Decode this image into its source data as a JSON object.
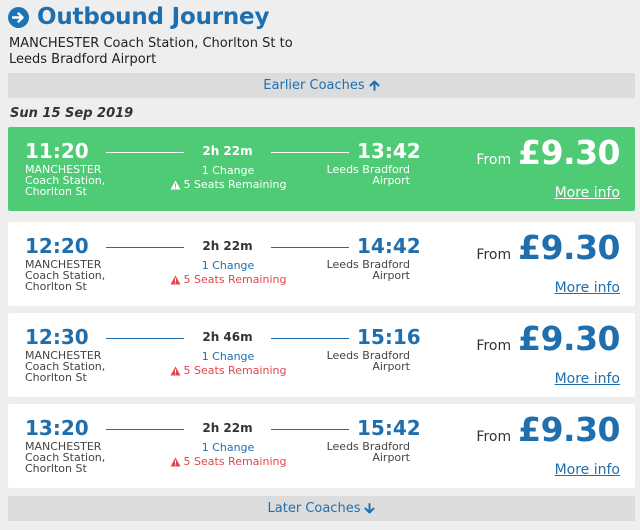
{
  "header": {
    "title": "Outbound Journey",
    "icon": "arrow-right-circle-icon"
  },
  "route": {
    "line1": "MANCHESTER Coach Station, Chorlton St to",
    "line2": "Leeds Bradford Airport"
  },
  "nav": {
    "earlier_label": "Earlier Coaches",
    "later_label": "Later Coaches"
  },
  "date": "Sun 15 Sep 2019",
  "colors": {
    "accent": "#1f6fae",
    "selected": "#4fca75",
    "warning": "#e0464d"
  },
  "journeys": [
    {
      "dep": "11:20",
      "arr": "13:42",
      "duration": "2h 22m",
      "changes": "1 Change",
      "seats": "5 Seats Remaining",
      "origin_city": "MANCHESTER",
      "origin_stn1": "Coach Station,",
      "origin_stn2": "Chorlton St",
      "dest1": "Leeds Bradford",
      "dest2": "Airport",
      "from": "From",
      "price": "£9.30",
      "more": "More info",
      "selected": true
    },
    {
      "dep": "12:20",
      "arr": "14:42",
      "duration": "2h 22m",
      "changes": "1 Change",
      "seats": "5 Seats Remaining",
      "origin_city": "MANCHESTER",
      "origin_stn1": "Coach Station,",
      "origin_stn2": "Chorlton St",
      "dest1": "Leeds Bradford",
      "dest2": "Airport",
      "from": "From",
      "price": "£9.30",
      "more": "More info",
      "selected": false
    },
    {
      "dep": "12:30",
      "arr": "15:16",
      "duration": "2h 46m",
      "changes": "1 Change",
      "seats": "5 Seats Remaining",
      "origin_city": "MANCHESTER",
      "origin_stn1": "Coach Station,",
      "origin_stn2": "Chorlton St",
      "dest1": "Leeds Bradford",
      "dest2": "Airport",
      "from": "From",
      "price": "£9.30",
      "more": "More info",
      "selected": false
    },
    {
      "dep": "13:20",
      "arr": "15:42",
      "duration": "2h 22m",
      "changes": "1 Change",
      "seats": "5 Seats Remaining",
      "origin_city": "MANCHESTER",
      "origin_stn1": "Coach Station,",
      "origin_stn2": "Chorlton St",
      "dest1": "Leeds Bradford",
      "dest2": "Airport",
      "from": "From",
      "price": "£9.30",
      "more": "More info",
      "selected": false
    }
  ]
}
